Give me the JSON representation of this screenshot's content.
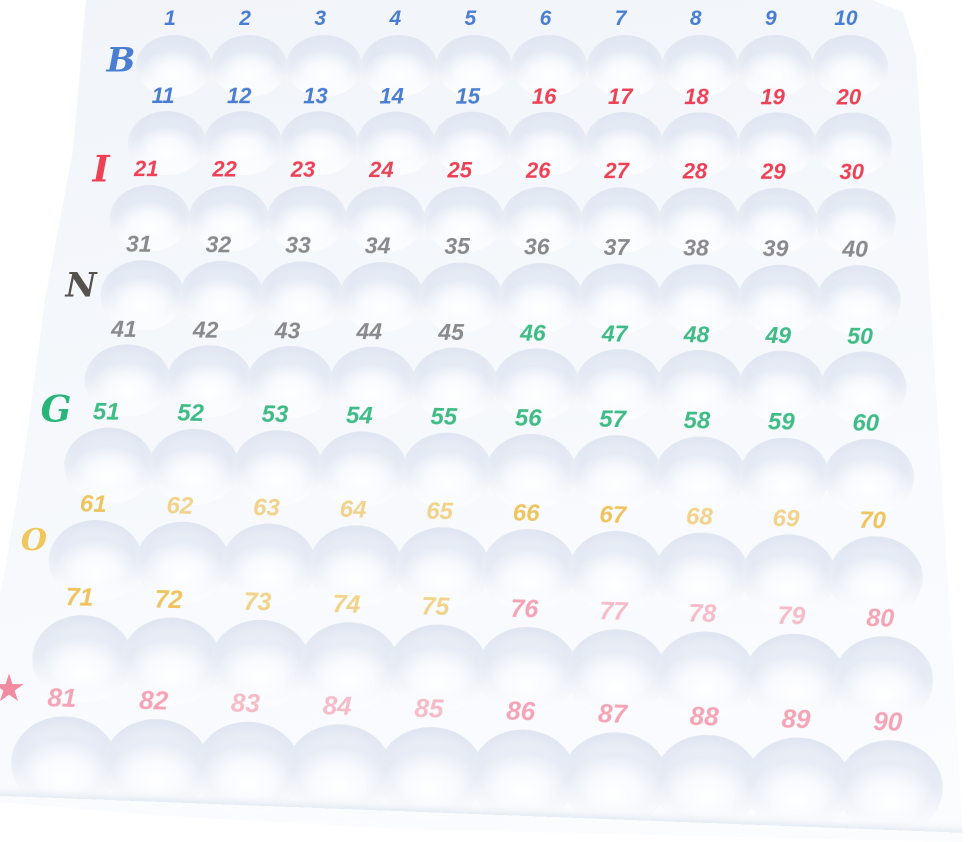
{
  "board": {
    "description": "White plastic bingo master board with 90 numbered ball wells",
    "letters": [
      {
        "name": "letter-b",
        "label": "B",
        "color": "#4a7ed2"
      },
      {
        "name": "letter-i",
        "label": "I",
        "color": "#ee4156"
      },
      {
        "name": "letter-n",
        "label": "N",
        "color": "#55514d"
      },
      {
        "name": "letter-g",
        "label": "G",
        "color": "#27b578"
      },
      {
        "name": "letter-o",
        "label": "O",
        "color": "#eec85f"
      },
      {
        "name": "star-icon",
        "label": "★",
        "color": "#f28aa0"
      }
    ],
    "rows": [
      [
        1,
        2,
        3,
        4,
        5,
        6,
        7,
        8,
        9,
        10
      ],
      [
        11,
        12,
        13,
        14,
        15,
        16,
        17,
        18,
        19,
        20
      ],
      [
        21,
        22,
        23,
        24,
        25,
        26,
        27,
        28,
        29,
        30
      ],
      [
        31,
        32,
        33,
        34,
        35,
        36,
        37,
        38,
        39,
        40
      ],
      [
        41,
        42,
        43,
        44,
        45,
        46,
        47,
        48,
        49,
        50
      ],
      [
        51,
        52,
        53,
        54,
        55,
        56,
        57,
        58,
        59,
        60
      ],
      [
        61,
        62,
        63,
        64,
        65,
        66,
        67,
        68,
        69,
        70
      ],
      [
        71,
        72,
        73,
        74,
        75,
        76,
        77,
        78,
        79,
        80
      ],
      [
        81,
        82,
        83,
        84,
        85,
        86,
        87,
        88,
        89,
        90
      ]
    ],
    "color_ranges": [
      {
        "from": 1,
        "to": 15,
        "color": "#4a7ed2"
      },
      {
        "from": 16,
        "to": 30,
        "color": "#ee4156"
      },
      {
        "from": 31,
        "to": 45,
        "color": "#8a8a8e"
      },
      {
        "from": 46,
        "to": 60,
        "color": "#3fbc85"
      },
      {
        "from": 61,
        "to": 75,
        "color": "#eec45f"
      },
      {
        "from": 76,
        "to": 90,
        "color": "#f4a4b5"
      }
    ],
    "faded_numbers": [
      62,
      63,
      64,
      65,
      68,
      69,
      73,
      74,
      75,
      77,
      78,
      79,
      83,
      84,
      85
    ]
  }
}
